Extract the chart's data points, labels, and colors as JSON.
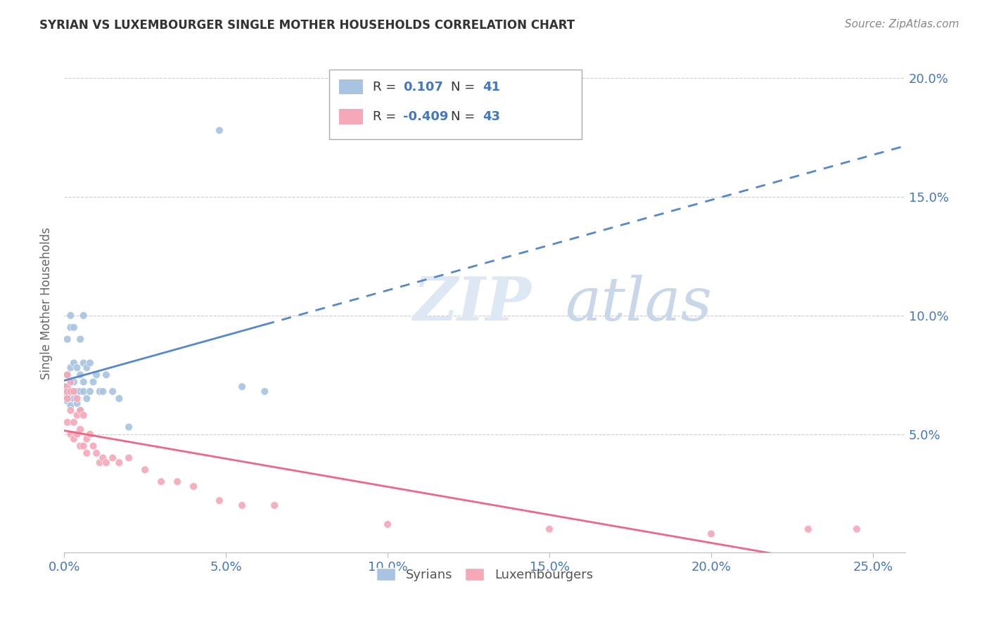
{
  "title": "SYRIAN VS LUXEMBOURGER SINGLE MOTHER HOUSEHOLDS CORRELATION CHART",
  "source": "Source: ZipAtlas.com",
  "ylabel": "Single Mother Households",
  "R_syrians": 0.107,
  "N_syrians": 41,
  "R_luxembourgers": -0.409,
  "N_luxembourgers": 43,
  "color_syrians": "#a8c4e0",
  "color_luxembourgers": "#f4a8b8",
  "color_line_syrians": "#5588cc",
  "color_line_luxembourgers": "#ee6688",
  "color_text_blue": "#4477bb",
  "title_color": "#333333",
  "grid_color": "#cccccc",
  "syrians_x": [
    0.0,
    0.001,
    0.001,
    0.001,
    0.001,
    0.002,
    0.002,
    0.002,
    0.002,
    0.002,
    0.003,
    0.003,
    0.003,
    0.003,
    0.003,
    0.004,
    0.004,
    0.004,
    0.005,
    0.005,
    0.005,
    0.005,
    0.006,
    0.006,
    0.006,
    0.006,
    0.007,
    0.007,
    0.008,
    0.008,
    0.009,
    0.01,
    0.011,
    0.012,
    0.013,
    0.015,
    0.017,
    0.02,
    0.048,
    0.055,
    0.062
  ],
  "syrians_y": [
    0.068,
    0.064,
    0.07,
    0.075,
    0.09,
    0.062,
    0.068,
    0.078,
    0.095,
    0.1,
    0.065,
    0.068,
    0.072,
    0.08,
    0.095,
    0.063,
    0.068,
    0.078,
    0.06,
    0.068,
    0.075,
    0.09,
    0.068,
    0.072,
    0.08,
    0.1,
    0.065,
    0.078,
    0.068,
    0.08,
    0.072,
    0.075,
    0.068,
    0.068,
    0.075,
    0.068,
    0.065,
    0.053,
    0.178,
    0.07,
    0.068
  ],
  "luxembourgers_x": [
    0.0,
    0.001,
    0.001,
    0.001,
    0.001,
    0.002,
    0.002,
    0.002,
    0.002,
    0.003,
    0.003,
    0.003,
    0.004,
    0.004,
    0.004,
    0.005,
    0.005,
    0.005,
    0.006,
    0.006,
    0.007,
    0.007,
    0.008,
    0.009,
    0.01,
    0.011,
    0.012,
    0.013,
    0.015,
    0.017,
    0.02,
    0.025,
    0.03,
    0.035,
    0.04,
    0.048,
    0.055,
    0.065,
    0.1,
    0.15,
    0.2,
    0.23,
    0.245
  ],
  "luxembourgers_y": [
    0.068,
    0.055,
    0.065,
    0.068,
    0.075,
    0.05,
    0.06,
    0.068,
    0.072,
    0.048,
    0.055,
    0.068,
    0.05,
    0.058,
    0.065,
    0.045,
    0.052,
    0.06,
    0.045,
    0.058,
    0.042,
    0.048,
    0.05,
    0.045,
    0.042,
    0.038,
    0.04,
    0.038,
    0.04,
    0.038,
    0.04,
    0.035,
    0.03,
    0.03,
    0.028,
    0.022,
    0.02,
    0.02,
    0.012,
    0.01,
    0.008,
    0.01,
    0.01
  ],
  "syrians_sizes": [
    300,
    60,
    60,
    60,
    60,
    60,
    60,
    60,
    60,
    60,
    60,
    60,
    60,
    60,
    60,
    60,
    60,
    60,
    60,
    60,
    60,
    60,
    60,
    60,
    60,
    60,
    60,
    60,
    60,
    60,
    60,
    60,
    60,
    60,
    60,
    60,
    60,
    60,
    60,
    60,
    60
  ],
  "luxembourgers_sizes": [
    300,
    60,
    60,
    60,
    60,
    60,
    60,
    60,
    60,
    60,
    60,
    60,
    60,
    60,
    60,
    60,
    60,
    60,
    60,
    60,
    60,
    60,
    60,
    60,
    60,
    60,
    60,
    60,
    60,
    60,
    60,
    60,
    60,
    60,
    60,
    60,
    60,
    60,
    60,
    60,
    60,
    60,
    60
  ],
  "xlim": [
    0.0,
    0.26
  ],
  "ylim": [
    0.0,
    0.21
  ],
  "xticks": [
    0.0,
    0.05,
    0.1,
    0.15,
    0.2,
    0.25
  ],
  "xticklabels": [
    "0.0%",
    "5.0%",
    "10.0%",
    "15.0%",
    "20.0%",
    "25.0%"
  ],
  "yticks": [
    0.05,
    0.1,
    0.15,
    0.2
  ],
  "yticklabels": [
    "5.0%",
    "10.0%",
    "15.0%",
    "20.0%"
  ],
  "legend_syrians": "Syrians",
  "legend_luxembourgers": "Luxembourgers"
}
